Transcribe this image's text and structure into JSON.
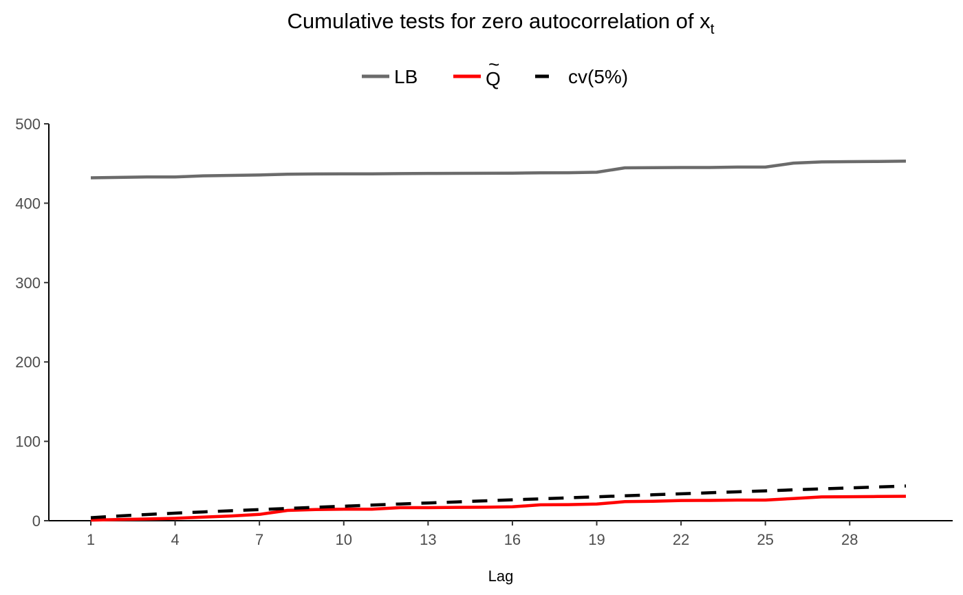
{
  "chart_data": {
    "type": "line",
    "title": "Cumulative tests for zero autocorrelation of x",
    "title_subscript": "t",
    "xlabel": "Lag",
    "ylabel": "",
    "xlim": [
      1,
      30
    ],
    "ylim": [
      0,
      500
    ],
    "x_ticks": [
      1,
      4,
      7,
      10,
      13,
      16,
      19,
      22,
      25,
      28
    ],
    "y_ticks": [
      0,
      100,
      200,
      300,
      400,
      500
    ],
    "grid": false,
    "legend_position": "top",
    "x": [
      1,
      2,
      3,
      4,
      5,
      6,
      7,
      8,
      9,
      10,
      11,
      12,
      13,
      14,
      15,
      16,
      17,
      18,
      19,
      20,
      21,
      22,
      23,
      24,
      25,
      26,
      27,
      28,
      29,
      30
    ],
    "series": [
      {
        "name": "LB",
        "color": "#6b6b6b",
        "style": "solid",
        "values": [
          432,
          432.5,
          433,
          433,
          434.5,
          435,
          435.5,
          436.5,
          436.8,
          437,
          437,
          437.3,
          437.5,
          437.6,
          437.7,
          437.8,
          438.3,
          438.4,
          439,
          444.5,
          444.7,
          445,
          445,
          445.5,
          445.5,
          450.5,
          452,
          452.3,
          452.6,
          453
        ]
      },
      {
        "name": "Q",
        "legend_mark": "~",
        "color": "#ff0000",
        "style": "solid",
        "values": [
          0.8,
          1.5,
          2.2,
          3,
          4.5,
          6,
          8,
          13,
          14,
          14.5,
          14.5,
          16.5,
          16.5,
          16.8,
          17,
          17.5,
          20,
          20.3,
          21,
          24,
          24.5,
          25.5,
          25.6,
          26,
          26,
          28,
          30,
          30.2,
          30.5,
          30.8
        ]
      },
      {
        "name": "cv(5%)",
        "color": "#000000",
        "style": "dashed",
        "values": [
          3.84,
          5.99,
          7.81,
          9.49,
          11.07,
          12.59,
          14.07,
          15.51,
          16.92,
          18.31,
          19.68,
          21.03,
          22.36,
          23.68,
          25.0,
          26.3,
          27.59,
          28.87,
          30.14,
          31.41,
          32.67,
          33.92,
          35.17,
          36.42,
          37.65,
          38.89,
          40.11,
          41.34,
          42.56,
          43.77
        ]
      }
    ]
  }
}
